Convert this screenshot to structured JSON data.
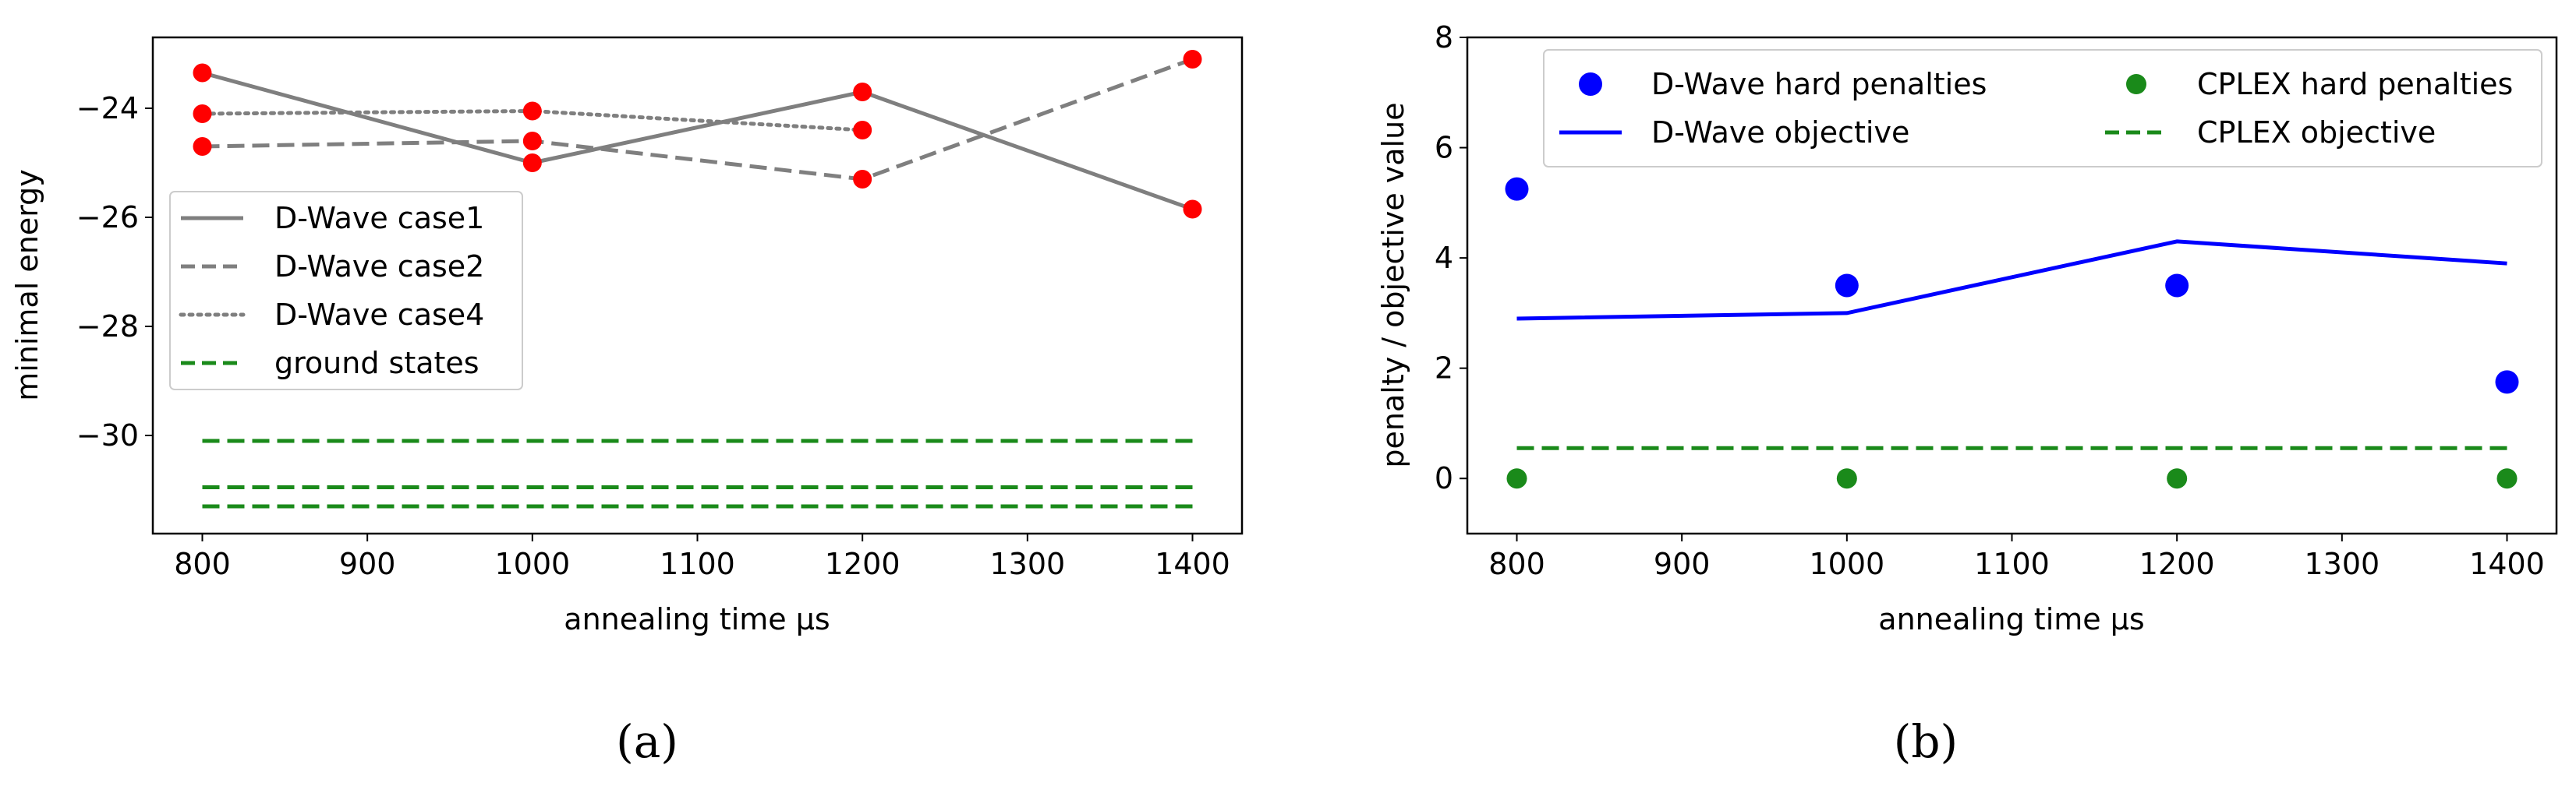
{
  "figure": {
    "captions": [
      "(a)",
      "(b)"
    ]
  },
  "chart_data": [
    {
      "type": "line",
      "panel": "(a)",
      "title": "",
      "xlabel": "annealing time µs",
      "ylabel": "minimal energy",
      "xlim": [
        770,
        1430
      ],
      "ylim": [
        -31.8,
        -22.7
      ],
      "xticks": [
        800,
        900,
        1000,
        1100,
        1200,
        1300,
        1400
      ],
      "yticks": [
        -30,
        -28,
        -26,
        -24
      ],
      "legend_position": "center-left",
      "colors": {
        "dwave": "#7f7f7f",
        "ground": "#1a8a1a",
        "marker": "#ff0000"
      },
      "series": [
        {
          "name": "D-Wave case1",
          "style": "solid",
          "x": [
            800,
            1000,
            1200,
            1400
          ],
          "y": [
            -23.35,
            -25.0,
            -23.7,
            -25.85
          ]
        },
        {
          "name": "D-Wave case2",
          "style": "dashed",
          "x": [
            800,
            1000,
            1200,
            1400
          ],
          "y": [
            -24.7,
            -24.6,
            -25.3,
            -23.1
          ]
        },
        {
          "name": "D-Wave case4",
          "style": "dotted",
          "x": [
            800,
            1000,
            1200
          ],
          "y": [
            -24.1,
            -24.05,
            -24.4
          ]
        }
      ],
      "ground_states": {
        "name": "ground states",
        "style": "dashed",
        "xrange": [
          800,
          1400
        ],
        "y": [
          -30.1,
          -30.95,
          -31.3
        ]
      }
    },
    {
      "type": "scatter",
      "panel": "(b)",
      "title": "",
      "xlabel": "annealing time µs",
      "ylabel": "penalty / objective value",
      "xlim": [
        770,
        1430
      ],
      "ylim": [
        -1,
        8
      ],
      "xticks": [
        800,
        900,
        1000,
        1100,
        1200,
        1300,
        1400
      ],
      "yticks": [
        0,
        2,
        4,
        6,
        8
      ],
      "legend_position": "top",
      "colors": {
        "dwave": "#0000ff",
        "cplex": "#1a8a1a"
      },
      "series": [
        {
          "name": "D-Wave hard penalties",
          "kind": "points",
          "x": [
            800,
            1000,
            1200,
            1400
          ],
          "y": [
            5.25,
            3.5,
            3.5,
            1.75
          ]
        },
        {
          "name": "CPLEX hard penalties",
          "kind": "points",
          "x": [
            800,
            1000,
            1200,
            1400
          ],
          "y": [
            0,
            0,
            0,
            0
          ]
        },
        {
          "name": "D-Wave objective",
          "kind": "line",
          "style": "solid",
          "x": [
            800,
            1000,
            1200,
            1400
          ],
          "y": [
            2.9,
            3.0,
            4.3,
            3.9
          ]
        },
        {
          "name": "CPLEX objective",
          "kind": "line",
          "style": "dashed",
          "x": [
            800,
            1400
          ],
          "y": [
            0.55,
            0.55
          ]
        }
      ],
      "legend_order": [
        "D-Wave hard penalties",
        "CPLEX hard penalties",
        "D-Wave objective",
        "CPLEX objective"
      ]
    }
  ]
}
